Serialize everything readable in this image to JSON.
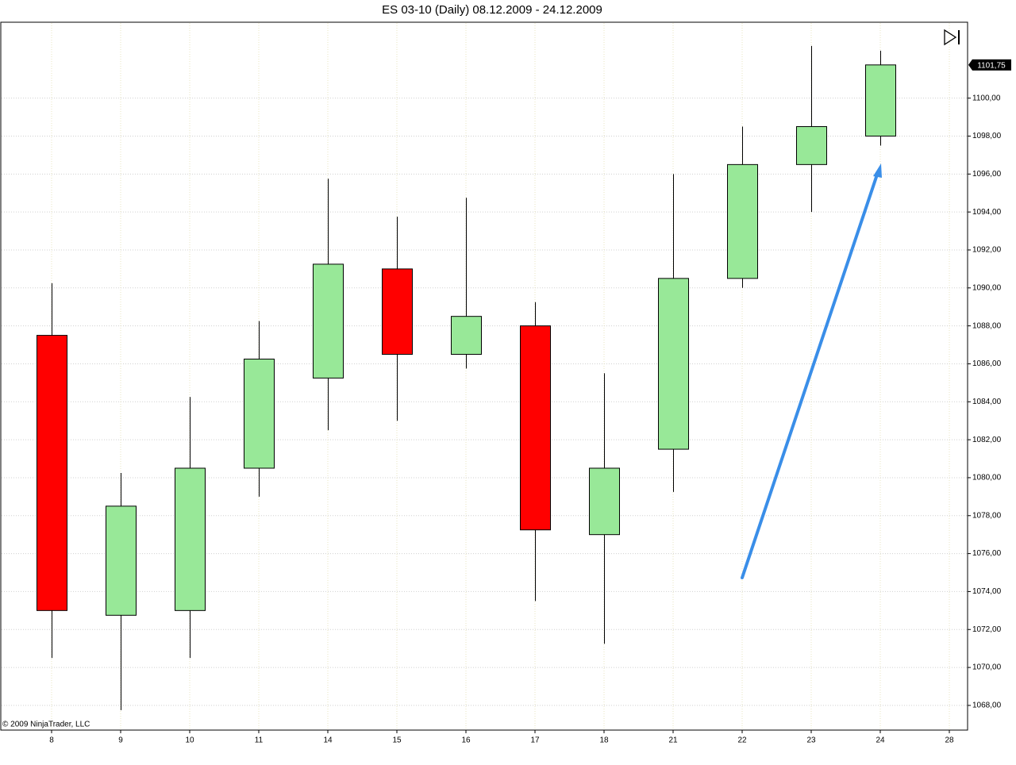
{
  "chart_data": {
    "type": "candlestick",
    "title": "ES 03-10 (Daily)  08.12.2009 - 24.12.2009",
    "copyright": "© 2009 NinjaTrader, LLC",
    "categories": [
      "8",
      "9",
      "10",
      "11",
      "14",
      "15",
      "16",
      "17",
      "18",
      "21",
      "22",
      "23",
      "24",
      "28"
    ],
    "open": [
      1087.5,
      1072.75,
      1073.0,
      1080.5,
      1085.25,
      1091.0,
      1086.5,
      1088.0,
      1077.0,
      1081.5,
      1090.5,
      1096.5,
      1098.0,
      null
    ],
    "high": [
      1090.25,
      1080.25,
      1084.25,
      1088.25,
      1095.75,
      1093.75,
      1094.75,
      1089.25,
      1085.5,
      1096.0,
      1098.5,
      1102.75,
      1102.5,
      null
    ],
    "low": [
      1070.5,
      1067.75,
      1070.5,
      1079.0,
      1082.5,
      1083.0,
      1085.75,
      1073.5,
      1071.25,
      1079.25,
      1090.0,
      1094.0,
      1097.5,
      null
    ],
    "close": [
      1073.0,
      1078.5,
      1080.5,
      1086.25,
      1091.25,
      1086.5,
      1088.5,
      1077.25,
      1080.5,
      1090.5,
      1096.5,
      1098.5,
      1101.75,
      null
    ],
    "up_color": "#98e898",
    "down_color": "#ff0000",
    "last_price": {
      "value": 1101.75,
      "label": "1101,75"
    },
    "ylim": [
      1066.7,
      1104.0
    ],
    "yticks": [
      {
        "value": 1068,
        "label": "1068,00"
      },
      {
        "value": 1070,
        "label": "1070,00"
      },
      {
        "value": 1072,
        "label": "1072,00"
      },
      {
        "value": 1074,
        "label": "1074,00"
      },
      {
        "value": 1076,
        "label": "1076,00"
      },
      {
        "value": 1078,
        "label": "1078,00"
      },
      {
        "value": 1080,
        "label": "1080,00"
      },
      {
        "value": 1082,
        "label": "1082,00"
      },
      {
        "value": 1084,
        "label": "1084,00"
      },
      {
        "value": 1086,
        "label": "1086,00"
      },
      {
        "value": 1088,
        "label": "1088,00"
      },
      {
        "value": 1090,
        "label": "1090,00"
      },
      {
        "value": 1092,
        "label": "1092,00"
      },
      {
        "value": 1094,
        "label": "1094,00"
      },
      {
        "value": 1096,
        "label": "1096,00"
      },
      {
        "value": 1098,
        "label": "1098,00"
      },
      {
        "value": 1100,
        "label": "1100,00"
      }
    ],
    "grid": true
  }
}
